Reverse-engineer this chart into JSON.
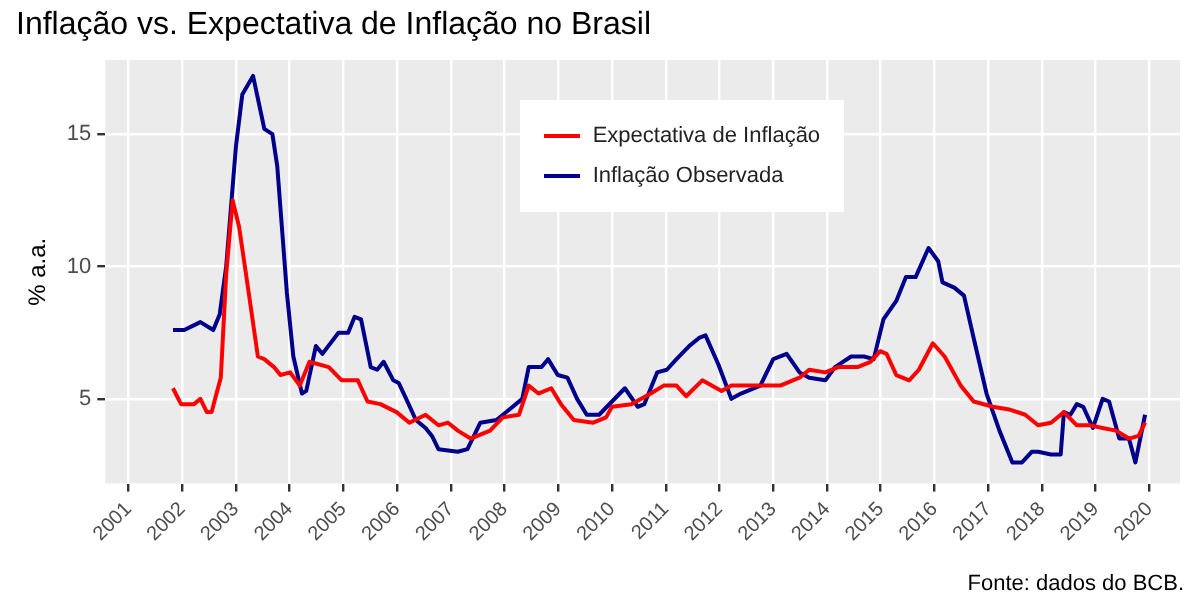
{
  "chart_data": {
    "type": "line",
    "title": "Inflação vs. Expectativa de Inflação no Brasil",
    "ylabel": "% a.a.",
    "annotations": [
      "Fonte: dados do BCB."
    ],
    "legend": "top",
    "grid": true,
    "marker": "none",
    "line_style": "solid",
    "xlim": [
      2000.57,
      2020.57
    ],
    "xticks": [
      2001,
      2002,
      2003,
      2004,
      2005,
      2006,
      2007,
      2008,
      2009,
      2010,
      2011,
      2012,
      2013,
      2014,
      2015,
      2016,
      2017,
      2018,
      2019,
      2020
    ],
    "ylim": [
      1.8,
      17.8
    ],
    "yticks": [
      5,
      10,
      15
    ],
    "series": [
      {
        "name": "Expectativa de Inflação",
        "color": "#ff0000",
        "x": [
          2001.83,
          2001.98,
          2002.22,
          2002.34,
          2002.46,
          2002.55,
          2002.64,
          2002.72,
          2002.82,
          2002.94,
          2003.06,
          2003.24,
          2003.41,
          2003.53,
          2003.71,
          2003.83,
          2004.01,
          2004.19,
          2004.37,
          2004.73,
          2004.97,
          2005.27,
          2005.45,
          2005.69,
          2005.99,
          2006.23,
          2006.53,
          2006.77,
          2006.95,
          2007.13,
          2007.37,
          2007.73,
          2007.97,
          2008.27,
          2008.45,
          2008.63,
          2008.87,
          2009.05,
          2009.29,
          2009.65,
          2009.89,
          2010.0,
          2010.36,
          2010.72,
          2010.96,
          2011.2,
          2011.38,
          2011.68,
          2012.04,
          2012.22,
          2012.64,
          2013.13,
          2013.49,
          2013.67,
          2013.97,
          2014.21,
          2014.57,
          2014.81,
          2014.99,
          2015.11,
          2015.29,
          2015.53,
          2015.71,
          2015.97,
          2016.19,
          2016.49,
          2016.73,
          2017.09,
          2017.39,
          2017.69,
          2017.93,
          2018.17,
          2018.41,
          2018.65,
          2018.89,
          2019.13,
          2019.38,
          2019.62,
          2019.8,
          2019.92
        ],
        "values": [
          5.4,
          4.8,
          4.8,
          5.0,
          4.5,
          4.5,
          5.2,
          5.8,
          9.7,
          12.5,
          11.5,
          9.0,
          6.6,
          6.5,
          6.2,
          5.9,
          6.0,
          5.5,
          6.4,
          6.2,
          5.7,
          5.7,
          4.9,
          4.8,
          4.5,
          4.1,
          4.4,
          4.0,
          4.1,
          3.8,
          3.5,
          3.8,
          4.3,
          4.4,
          5.5,
          5.2,
          5.4,
          4.8,
          4.2,
          4.1,
          4.3,
          4.7,
          4.8,
          5.2,
          5.5,
          5.5,
          5.1,
          5.7,
          5.3,
          5.5,
          5.5,
          5.5,
          5.8,
          6.1,
          6.0,
          6.2,
          6.2,
          6.4,
          6.8,
          6.7,
          5.9,
          5.7,
          6.1,
          7.1,
          6.6,
          5.5,
          4.9,
          4.7,
          4.6,
          4.4,
          4.0,
          4.1,
          4.5,
          4.0,
          4.0,
          3.9,
          3.8,
          3.5,
          3.6,
          4.1
        ]
      },
      {
        "name": "Inflação Observada",
        "color": "#00008b",
        "x": [
          2001.83,
          2002.04,
          2002.34,
          2002.58,
          2002.7,
          2002.82,
          2003.0,
          2003.12,
          2003.32,
          2003.53,
          2003.68,
          2003.77,
          2003.95,
          2004.07,
          2004.23,
          2004.31,
          2004.49,
          2004.61,
          2004.91,
          2005.09,
          2005.21,
          2005.33,
          2005.51,
          2005.63,
          2005.75,
          2005.93,
          2006.03,
          2006.17,
          2006.35,
          2006.53,
          2006.65,
          2006.77,
          2007.13,
          2007.31,
          2007.43,
          2007.55,
          2007.85,
          2008.09,
          2008.33,
          2008.45,
          2008.69,
          2008.81,
          2008.99,
          2009.17,
          2009.35,
          2009.53,
          2009.76,
          2010.0,
          2010.24,
          2010.48,
          2010.6,
          2010.84,
          2011.02,
          2011.2,
          2011.44,
          2011.62,
          2011.74,
          2011.98,
          2012.22,
          2012.4,
          2012.76,
          2013.0,
          2013.25,
          2013.49,
          2013.67,
          2013.97,
          2014.15,
          2014.45,
          2014.69,
          2014.87,
          2015.05,
          2015.29,
          2015.47,
          2015.65,
          2015.89,
          2016.07,
          2016.15,
          2016.37,
          2016.55,
          2016.73,
          2016.97,
          2017.21,
          2017.45,
          2017.63,
          2017.81,
          2017.93,
          2018.17,
          2018.35,
          2018.41,
          2018.53,
          2018.65,
          2018.77,
          2018.95,
          2019.13,
          2019.25,
          2019.44,
          2019.62,
          2019.74,
          2019.92
        ],
        "values": [
          7.6,
          7.6,
          7.9,
          7.6,
          8.2,
          10,
          14.5,
          16.5,
          17.2,
          15.2,
          15.0,
          13.8,
          9.0,
          6.6,
          5.2,
          5.3,
          7.0,
          6.7,
          7.5,
          7.5,
          8.1,
          8.0,
          6.2,
          6.1,
          6.4,
          5.7,
          5.6,
          5.0,
          4.2,
          3.9,
          3.6,
          3.1,
          3.0,
          3.1,
          3.6,
          4.1,
          4.2,
          4.6,
          5.0,
          6.2,
          6.2,
          6.5,
          5.9,
          5.8,
          5.0,
          4.4,
          4.4,
          4.9,
          5.4,
          4.7,
          4.8,
          6.0,
          6.1,
          6.5,
          7.0,
          7.3,
          7.4,
          6.3,
          5.0,
          5.2,
          5.5,
          6.5,
          6.7,
          6.0,
          5.8,
          5.7,
          6.2,
          6.6,
          6.6,
          6.5,
          8.0,
          8.7,
          9.6,
          9.6,
          10.7,
          10.2,
          9.4,
          9.2,
          8.9,
          7.3,
          5.2,
          3.8,
          2.6,
          2.6,
          3.0,
          3.0,
          2.9,
          2.9,
          4.5,
          4.4,
          4.8,
          4.7,
          3.9,
          5.0,
          4.9,
          3.5,
          3.5,
          2.6,
          4.4
        ]
      }
    ]
  }
}
